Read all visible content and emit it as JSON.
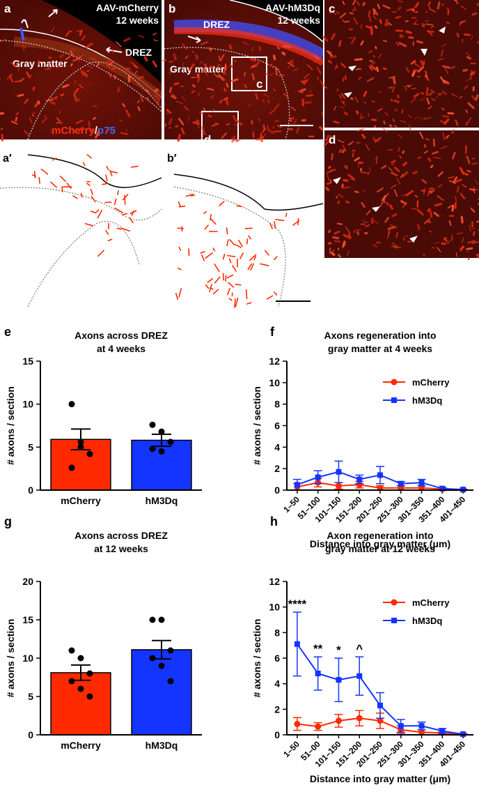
{
  "figure": {
    "a": {
      "letter": "a",
      "title1": "AAV-mCherry",
      "title2": "12 weeks",
      "gray": "Gray matter",
      "drez": "DREZ",
      "stain1": "mCherry",
      "stain2": "/",
      "stain3": "p75"
    },
    "b": {
      "letter": "b",
      "title1": "AAV-hM3Dq",
      "title2": "12 weeks",
      "drez": "DREZ",
      "gray": "Gray matter",
      "box_c": "c",
      "box_d": "d"
    },
    "c": {
      "letter": "c"
    },
    "d": {
      "letter": "d"
    },
    "a_prime": {
      "letter": "a′"
    },
    "b_prime": {
      "letter": "b′"
    }
  },
  "chart_data": [
    {
      "type": "bar",
      "panel": "e",
      "title": [
        "Axons across DREZ",
        "at 4 weeks"
      ],
      "y_label": "# axons / section",
      "categories": [
        "mCherry",
        "hM3Dq"
      ],
      "values": [
        5.9,
        5.8
      ],
      "errors": [
        1.2,
        0.7
      ],
      "colors": [
        "#ff2a00",
        "#1434ff"
      ],
      "points": [
        [
          10,
          5.6,
          4.2,
          2.6,
          5.0
        ],
        [
          7.6,
          6.8,
          5.6,
          4.8,
          4.5
        ]
      ],
      "ylim": [
        0,
        15
      ],
      "yticks": [
        0,
        5,
        10,
        15
      ]
    },
    {
      "type": "line",
      "panel": "f",
      "title": [
        "Axons regeneration into",
        "gray matter at 4 weeks"
      ],
      "y_label": "# axons / section",
      "x_label": "Distance into gray matter (μm)",
      "categories": [
        "1–50",
        "51–100",
        "101–150",
        "151–200",
        "201–250",
        "251–300",
        "301–350",
        "351–400",
        "401–450"
      ],
      "series": [
        {
          "name": "mCherry",
          "color": "#ff2a00",
          "marker": "circle",
          "values": [
            0.3,
            0.7,
            0.4,
            0.5,
            0.2,
            0.2,
            0.2,
            0.1,
            0.05
          ],
          "errors": [
            0.3,
            0.4,
            0.3,
            0.3,
            0.2,
            0.2,
            0.2,
            0.1,
            0.05
          ]
        },
        {
          "name": "hM3Dq",
          "color": "#1434ff",
          "marker": "square",
          "values": [
            0.5,
            1.2,
            1.7,
            1.0,
            1.4,
            0.6,
            0.7,
            0.15,
            0.05
          ],
          "errors": [
            0.5,
            0.6,
            1.0,
            0.4,
            0.8,
            0.2,
            0.3,
            0.1,
            0.05
          ]
        }
      ],
      "ylim": [
        0,
        12
      ],
      "yticks": [
        0,
        2,
        4,
        6,
        8,
        10,
        12
      ],
      "legend": "upper right"
    },
    {
      "type": "bar",
      "panel": "g",
      "title": [
        "Axons across DREZ",
        "at 12 weeks"
      ],
      "y_label": "# axons / section",
      "categories": [
        "mCherry",
        "hM3Dq"
      ],
      "values": [
        8.1,
        11.1
      ],
      "errors": [
        1.0,
        1.2
      ],
      "colors": [
        "#ff2a00",
        "#1434ff"
      ],
      "points": [
        [
          11,
          10,
          8,
          7,
          6,
          5
        ],
        [
          15,
          15,
          11,
          10,
          9,
          7
        ]
      ],
      "ylim": [
        0,
        20
      ],
      "yticks": [
        0,
        5,
        10,
        15,
        20
      ]
    },
    {
      "type": "line",
      "panel": "h",
      "title": [
        "Axon regeneration into",
        "gray matter at 12 weeks"
      ],
      "y_label": "# axons / section",
      "x_label": "Distance into gray matter (μm)",
      "categories": [
        "1–50",
        "51–00",
        "101–150",
        "151–200",
        "201–250",
        "251–300",
        "301–350",
        "351–400",
        "401–450"
      ],
      "series": [
        {
          "name": "mCherry",
          "color": "#ff2a00",
          "marker": "circle",
          "values": [
            0.85,
            0.65,
            1.1,
            1.3,
            1.1,
            0.4,
            0.2,
            0.15,
            0.05
          ],
          "errors": [
            0.5,
            0.3,
            0.5,
            0.6,
            0.6,
            0.3,
            0.2,
            0.1,
            0.05
          ]
        },
        {
          "name": "hM3Dq",
          "color": "#1434ff",
          "marker": "square",
          "values": [
            7.1,
            4.8,
            4.3,
            4.6,
            2.3,
            0.7,
            0.7,
            0.3,
            0.05
          ],
          "errors": [
            2.5,
            1.3,
            1.7,
            1.5,
            1.0,
            0.5,
            0.3,
            0.2,
            0.05
          ]
        }
      ],
      "annotations": [
        "****",
        "**",
        "*",
        "^",
        null,
        null,
        null,
        null,
        null
      ],
      "ylim": [
        0,
        12
      ],
      "yticks": [
        0,
        2,
        4,
        6,
        8,
        10,
        12
      ],
      "legend": "upper right"
    }
  ]
}
